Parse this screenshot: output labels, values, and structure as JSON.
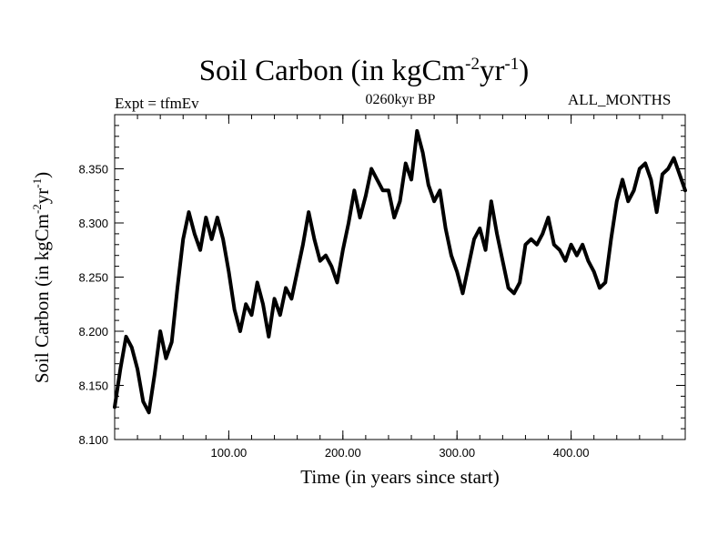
{
  "chart_data": {
    "type": "line",
    "title_main": "Soil Carbon (in kgCm",
    "title_sup1": "-2",
    "title_mid": "yr",
    "title_sup2": "-1",
    "title_end": ")",
    "left_label": "Expt = tfmEv",
    "center_label": "0260kyr BP",
    "right_label": "ALL_MONTHS",
    "xlabel": "Time (in years since start)",
    "ylabel_main": "Soil Carbon (in kgCm",
    "ylabel_sup1": "-2",
    "ylabel_mid": "yr",
    "ylabel_sup2": "-1",
    "ylabel_end": ")",
    "xlim": [
      0,
      500
    ],
    "ylim": [
      8.1,
      8.4
    ],
    "x_ticks": [
      100,
      200,
      300,
      400
    ],
    "x_tick_labels": [
      "100.00",
      "200.00",
      "300.00",
      "400.00"
    ],
    "y_ticks": [
      8.1,
      8.15,
      8.2,
      8.25,
      8.3,
      8.35
    ],
    "y_tick_labels": [
      "8.100",
      "8.150",
      "8.200",
      "8.250",
      "8.300",
      "8.350"
    ],
    "series": [
      {
        "name": "Soil Carbon",
        "x": [
          0,
          5,
          10,
          15,
          20,
          25,
          30,
          35,
          40,
          45,
          50,
          55,
          60,
          65,
          70,
          75,
          80,
          85,
          90,
          95,
          100,
          105,
          110,
          115,
          120,
          125,
          130,
          135,
          140,
          145,
          150,
          155,
          160,
          165,
          170,
          175,
          180,
          185,
          190,
          195,
          200,
          205,
          210,
          215,
          220,
          225,
          230,
          235,
          240,
          245,
          250,
          255,
          260,
          265,
          270,
          275,
          280,
          285,
          290,
          295,
          300,
          305,
          310,
          315,
          320,
          325,
          330,
          335,
          340,
          345,
          350,
          355,
          360,
          365,
          370,
          375,
          380,
          385,
          390,
          395,
          400,
          405,
          410,
          415,
          420,
          425,
          430,
          435,
          440,
          445,
          450,
          455,
          460,
          465,
          470,
          475,
          480,
          485,
          490,
          495,
          500
        ],
        "y": [
          8.13,
          8.165,
          8.195,
          8.185,
          8.165,
          8.135,
          8.125,
          8.16,
          8.2,
          8.175,
          8.19,
          8.24,
          8.285,
          8.31,
          8.29,
          8.275,
          8.305,
          8.285,
          8.305,
          8.285,
          8.255,
          8.22,
          8.2,
          8.225,
          8.215,
          8.245,
          8.225,
          8.195,
          8.23,
          8.215,
          8.24,
          8.23,
          8.255,
          8.28,
          8.31,
          8.285,
          8.265,
          8.27,
          8.26,
          8.245,
          8.275,
          8.3,
          8.33,
          8.305,
          8.325,
          8.35,
          8.34,
          8.33,
          8.33,
          8.305,
          8.32,
          8.355,
          8.34,
          8.385,
          8.365,
          8.335,
          8.32,
          8.33,
          8.295,
          8.27,
          8.255,
          8.235,
          8.26,
          8.285,
          8.295,
          8.275,
          8.32,
          8.29,
          8.265,
          8.24,
          8.235,
          8.245,
          8.28,
          8.285,
          8.28,
          8.29,
          8.305,
          8.28,
          8.275,
          8.265,
          8.28,
          8.27,
          8.28,
          8.265,
          8.255,
          8.24,
          8.245,
          8.285,
          8.32,
          8.34,
          8.32,
          8.33,
          8.35,
          8.355,
          8.34,
          8.31,
          8.345,
          8.35,
          8.36,
          8.345,
          8.33
        ]
      }
    ]
  }
}
